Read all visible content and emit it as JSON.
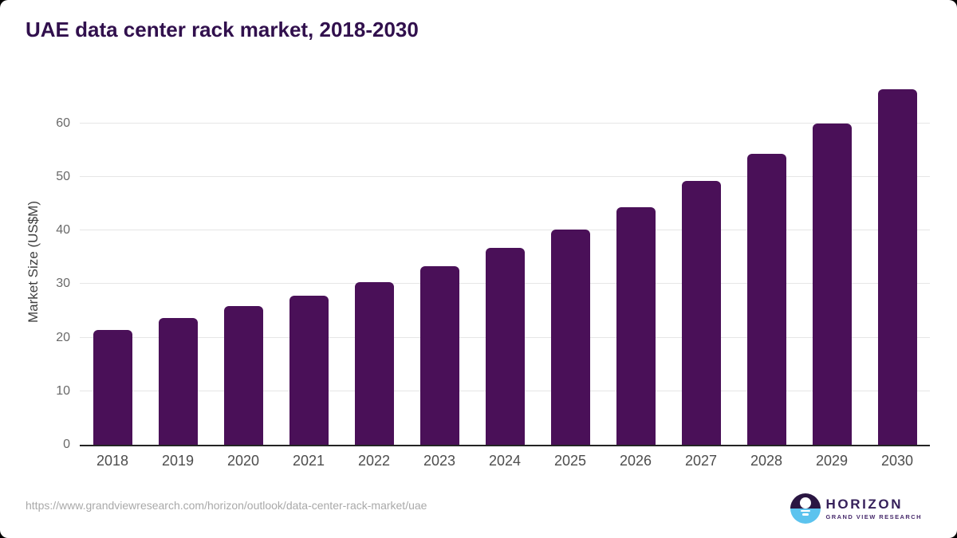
{
  "page": {
    "title": "UAE data center rack market, 2018-2030"
  },
  "chart_data": {
    "type": "bar",
    "title": "UAE data center rack market, 2018-2030",
    "xlabel": "",
    "ylabel": "Market Size (US$M)",
    "categories": [
      "2018",
      "2019",
      "2020",
      "2021",
      "2022",
      "2023",
      "2024",
      "2025",
      "2026",
      "2027",
      "2028",
      "2029",
      "2030"
    ],
    "values": [
      21.5,
      23.6,
      25.9,
      27.9,
      30.4,
      33.4,
      36.7,
      40.2,
      44.4,
      49.2,
      54.3,
      59.9,
      66.3
    ],
    "yticks": [
      0,
      10,
      20,
      30,
      40,
      50,
      60
    ],
    "ylim": [
      0,
      68.3
    ],
    "grid": "horizontal",
    "legend": "none",
    "bar_color": "#4a1058"
  },
  "colors": {
    "title_text": "#31104d",
    "bar": "#4a1058",
    "gridline": "#e6e6e6",
    "axis_line": "#242424",
    "tick_text": "#696969",
    "year_text": "#4d4d4d",
    "source_text": "#a9a9a9",
    "logo_purple": "#2a1642",
    "logo_blue": "#5cc3ee"
  },
  "footer": {
    "source_url": "https://www.grandviewresearch.com/horizon/outlook/data-center-rack-market/uae",
    "logo": {
      "name": "HORIZON",
      "subtitle": "GRAND VIEW RESEARCH"
    }
  }
}
